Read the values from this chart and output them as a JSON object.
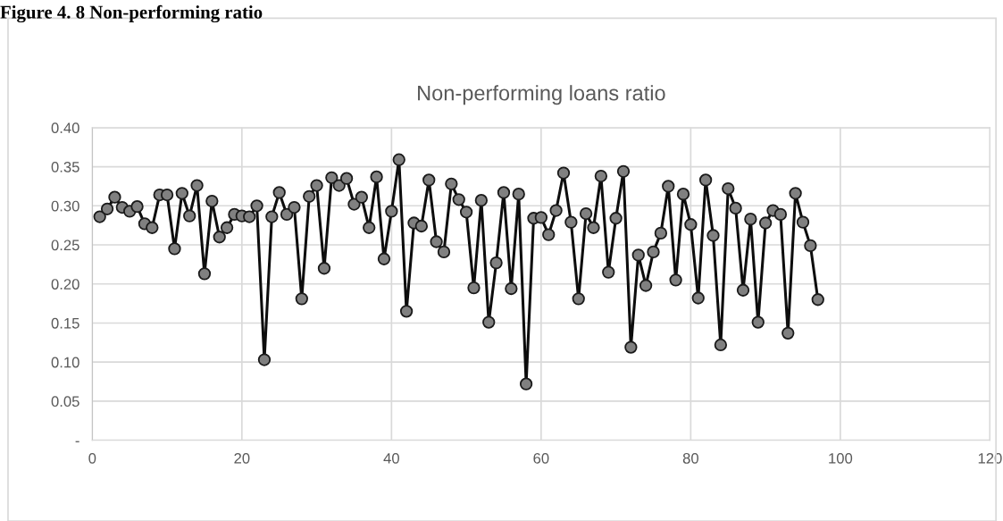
{
  "chart_data": {
    "type": "line",
    "title": "Non-performing loans ratio",
    "annotations": [
      "Figure 4. 8 Non-performing ratio"
    ],
    "x": [
      1,
      2,
      3,
      4,
      5,
      6,
      7,
      8,
      9,
      10,
      11,
      12,
      13,
      14,
      15,
      16,
      17,
      18,
      19,
      20,
      21,
      22,
      23,
      24,
      25,
      26,
      27,
      28,
      29,
      30,
      31,
      32,
      33,
      34,
      35,
      36,
      37,
      38,
      39,
      40,
      41,
      42,
      43,
      44,
      45,
      46,
      47,
      48,
      49,
      50,
      51,
      52,
      53,
      54,
      55,
      56,
      57,
      58,
      59,
      60,
      61,
      62,
      63,
      64,
      65,
      66,
      67,
      68,
      69,
      70,
      71,
      72,
      73,
      74,
      75,
      76,
      77,
      78,
      79,
      80,
      81,
      82,
      83,
      84,
      85,
      86,
      87,
      88,
      89,
      90,
      91,
      92,
      93,
      94,
      95,
      96,
      97
    ],
    "series": [
      {
        "color": "#808080",
        "values": [
          0.286,
          0.296,
          0.311,
          0.298,
          0.293,
          0.299,
          0.277,
          0.272,
          0.314,
          0.314,
          0.245,
          0.316,
          0.287,
          0.326,
          0.213,
          0.306,
          0.26,
          0.272,
          0.289,
          0.287,
          0.286,
          0.3,
          0.103,
          0.286,
          0.317,
          0.289,
          0.298,
          0.181,
          0.312,
          0.326,
          0.22,
          0.336,
          0.326,
          0.335,
          0.302,
          0.311,
          0.272,
          0.337,
          0.232,
          0.293,
          0.359,
          0.165,
          0.278,
          0.274,
          0.333,
          0.254,
          0.241,
          0.328,
          0.308,
          0.292,
          0.195,
          0.307,
          0.151,
          0.227,
          0.317,
          0.194,
          0.315,
          0.072,
          0.284,
          0.285,
          0.263,
          0.294,
          0.342,
          0.279,
          0.181,
          0.29,
          0.272,
          0.338,
          0.215,
          0.284,
          0.344,
          0.119,
          0.237,
          0.198,
          0.241,
          0.265,
          0.325,
          0.205,
          0.315,
          0.276,
          0.182,
          0.333,
          0.262,
          0.122,
          0.322,
          0.297,
          0.192,
          0.283,
          0.151,
          0.278,
          0.294,
          0.289,
          0.137,
          0.316,
          0.279,
          0.249,
          0.18
        ]
      }
    ],
    "xlim": [
      0,
      120
    ],
    "xticks": [
      0,
      20,
      40,
      60,
      80,
      100,
      120
    ],
    "ylim": [
      0,
      0.4
    ],
    "yticks": [
      {
        "value": 0,
        "label": "-"
      },
      {
        "value": 0.05,
        "label": "0.05"
      },
      {
        "value": 0.1,
        "label": "0.10"
      },
      {
        "value": 0.15,
        "label": "0.15"
      },
      {
        "value": 0.2,
        "label": "0.20"
      },
      {
        "value": 0.25,
        "label": "0.25"
      },
      {
        "value": 0.3,
        "label": "0.30"
      },
      {
        "value": 0.35,
        "label": "0.35"
      },
      {
        "value": 0.4,
        "label": "0.40"
      }
    ],
    "grid": true,
    "marker": "circle",
    "line_style": "solid",
    "legend": false
  }
}
